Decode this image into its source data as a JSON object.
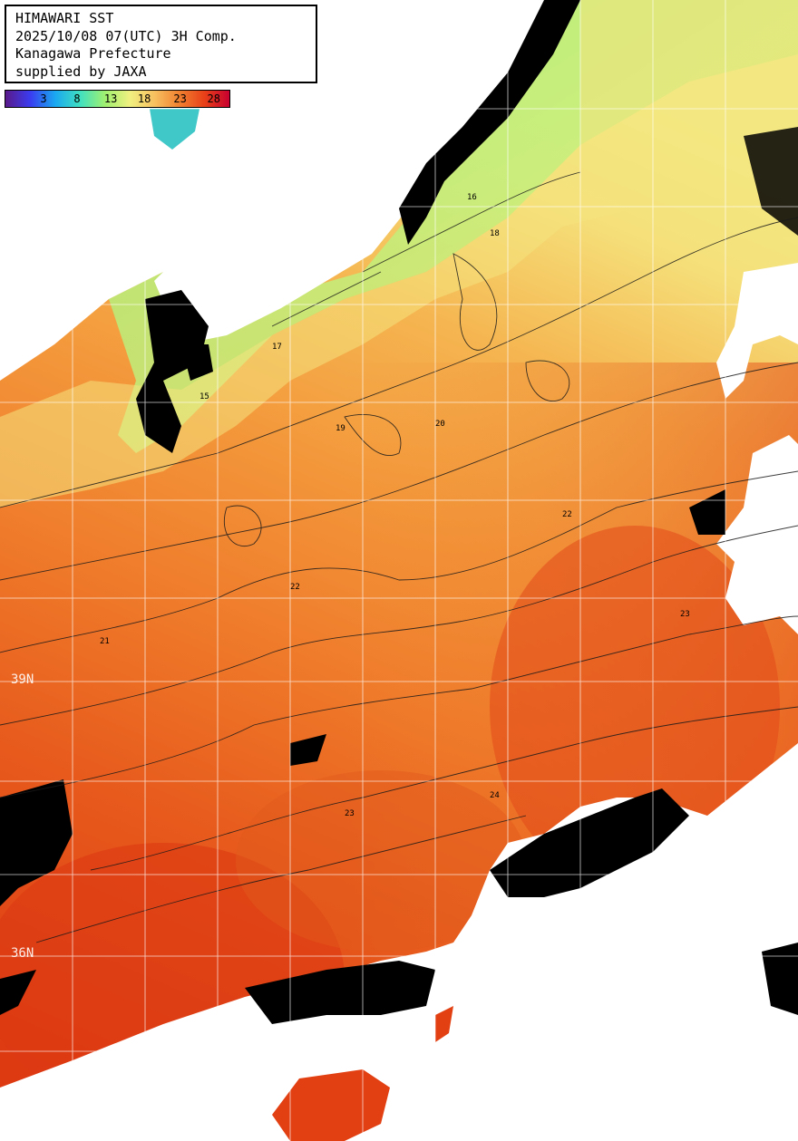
{
  "title": {
    "line1": "HIMAWARI SST",
    "line2": "2025/10/08 07(UTC) 3H Comp.",
    "line3": "Kanagawa Prefecture",
    "line4": "supplied by JAXA"
  },
  "colorbar": {
    "ticks": [
      "3",
      "8",
      "13",
      "18",
      "23",
      "28"
    ],
    "stops": [
      "#5a1a8a",
      "#3a3cf0",
      "#1aa8f0",
      "#40e0c0",
      "#a0f070",
      "#f0f080",
      "#f8c060",
      "#f08030",
      "#e84018",
      "#c80030"
    ]
  },
  "latitude_labels": [
    "39N",
    "36N"
  ],
  "contour_labels": [
    "15",
    "16",
    "17",
    "18",
    "19",
    "20",
    "21",
    "22",
    "23",
    "24"
  ],
  "colors": {
    "land": "#ffffff",
    "cloud": "#000000",
    "grid": "#ffffff",
    "warm": "#e84a12",
    "mid": "#f5962e",
    "cool": "#f2e37a",
    "cold": "#90e87a"
  }
}
